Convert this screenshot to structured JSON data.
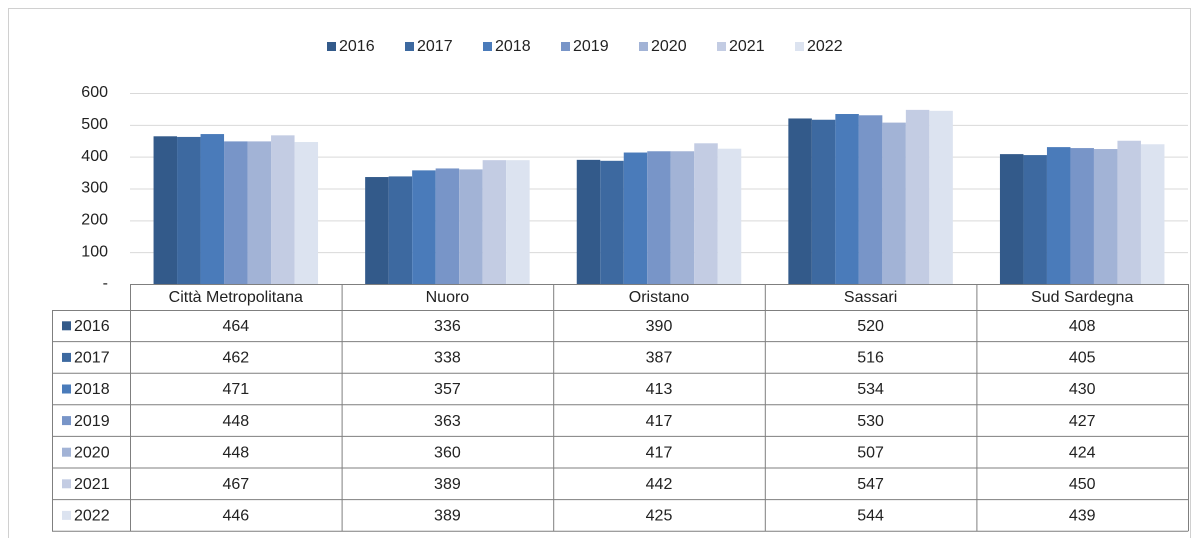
{
  "chart_data": {
    "type": "bar",
    "categories": [
      "Città Metropolitana",
      "Nuoro",
      "Oristano",
      "Sassari",
      "Sud Sardegna"
    ],
    "series": [
      {
        "name": "2016",
        "color": "#335a8a",
        "values": [
          464,
          336,
          390,
          520,
          408
        ]
      },
      {
        "name": "2017",
        "color": "#3d69a0",
        "values": [
          462,
          338,
          387,
          516,
          405
        ]
      },
      {
        "name": "2018",
        "color": "#4a7bba",
        "values": [
          471,
          357,
          413,
          534,
          430
        ]
      },
      {
        "name": "2019",
        "color": "#7895c8",
        "values": [
          448,
          363,
          417,
          530,
          427
        ]
      },
      {
        "name": "2020",
        "color": "#a2b3d6",
        "values": [
          448,
          360,
          417,
          507,
          424
        ]
      },
      {
        "name": "2021",
        "color": "#c3cce3",
        "values": [
          467,
          389,
          442,
          547,
          450
        ]
      },
      {
        "name": "2022",
        "color": "#dce3f0",
        "values": [
          446,
          389,
          425,
          544,
          439
        ]
      }
    ],
    "ylim": [
      0,
      600
    ],
    "yticks": [
      {
        "value": 0,
        "label": "-"
      },
      100,
      200,
      300,
      400,
      500,
      600
    ],
    "grid": true,
    "legend": "top",
    "data_table": true
  }
}
